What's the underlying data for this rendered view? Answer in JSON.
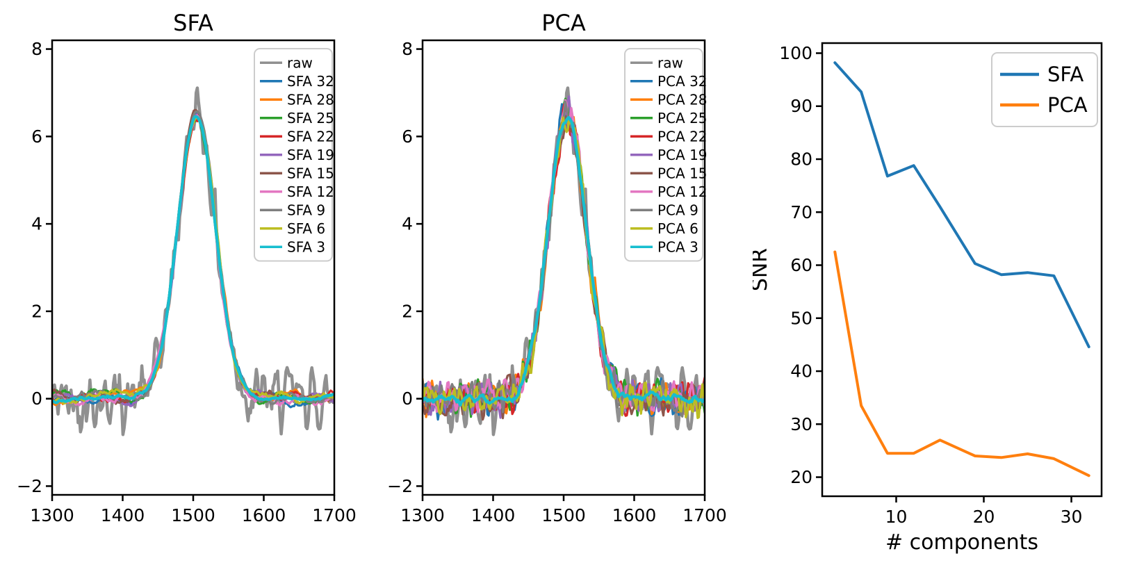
{
  "figure": {
    "background": "#ffffff",
    "text_color": "#000000",
    "spine_color": "#000000",
    "legend_border_color": "#cccccc",
    "legend_background": "#ffffff"
  },
  "chart_data": [
    {
      "type": "line",
      "title": "SFA",
      "xlabel": "",
      "ylabel": "",
      "xlim": [
        1300,
        1700
      ],
      "ylim": [
        -2.2,
        8.2
      ],
      "xticks": [
        1300,
        1400,
        1500,
        1600,
        1700
      ],
      "yticks": [
        -2,
        0,
        2,
        4,
        6,
        8
      ],
      "grid": false,
      "legend_position": "upper right",
      "signal_model": {
        "kind": "gaussian_peak_plus_noise",
        "center": 1505,
        "sigma": 27,
        "amplitude": 6.5,
        "baseline": 0,
        "raw_peak_observed": 7.7,
        "smooth_peak_observed": 6.5,
        "n_points": 240
      },
      "series": [
        {
          "label": "raw",
          "color": "#909090",
          "noise_scale": 1.0,
          "smooth": 3,
          "seed": 42,
          "width": 4.5
        },
        {
          "label": "SFA 32",
          "color": "#1f77b4",
          "noise_scale": 0.5,
          "smooth": 15,
          "seed": 201,
          "width": 3.2
        },
        {
          "label": "SFA 28",
          "color": "#ff7f0e",
          "noise_scale": 0.5,
          "smooth": 15,
          "seed": 202,
          "width": 3.2
        },
        {
          "label": "SFA 25",
          "color": "#2ca02c",
          "noise_scale": 0.5,
          "smooth": 15,
          "seed": 203,
          "width": 3.2
        },
        {
          "label": "SFA 22",
          "color": "#d62728",
          "noise_scale": 0.5,
          "smooth": 15,
          "seed": 204,
          "width": 3.2
        },
        {
          "label": "SFA 19",
          "color": "#9467bd",
          "noise_scale": 0.5,
          "smooth": 15,
          "seed": 205,
          "width": 3.2
        },
        {
          "label": "SFA 15",
          "color": "#8c564b",
          "noise_scale": 0.5,
          "smooth": 15,
          "seed": 206,
          "width": 3.2
        },
        {
          "label": "SFA 12",
          "color": "#e377c2",
          "noise_scale": 0.5,
          "smooth": 15,
          "seed": 207,
          "width": 3.2
        },
        {
          "label": "SFA 9",
          "color": "#7f7f7f",
          "noise_scale": 0.5,
          "smooth": 15,
          "seed": 208,
          "width": 3.2
        },
        {
          "label": "SFA 6",
          "color": "#bcbd22",
          "noise_scale": 0.5,
          "smooth": 15,
          "seed": 209,
          "width": 3.2
        },
        {
          "label": "SFA 3",
          "color": "#17becf",
          "noise_scale": 0.4,
          "smooth": 21,
          "seed": 210,
          "width": 4.2
        }
      ]
    },
    {
      "type": "line",
      "title": "PCA",
      "xlabel": "",
      "ylabel": "",
      "xlim": [
        1300,
        1700
      ],
      "ylim": [
        -2.2,
        8.2
      ],
      "xticks": [
        1300,
        1400,
        1500,
        1600,
        1700
      ],
      "yticks": [
        -2,
        0,
        2,
        4,
        6,
        8
      ],
      "grid": false,
      "legend_position": "upper right",
      "signal_model": {
        "kind": "gaussian_peak_plus_noise",
        "center": 1505,
        "sigma": 27,
        "amplitude": 6.5,
        "baseline": 0,
        "raw_peak_observed": 7.7,
        "smooth_peak_observed": 6.5,
        "n_points": 240
      },
      "series": [
        {
          "label": "raw",
          "color": "#909090",
          "noise_scale": 1.0,
          "smooth": 3,
          "seed": 42,
          "width": 4.5
        },
        {
          "label": "PCA 32",
          "color": "#1f77b4",
          "noise_scale": 0.55,
          "smooth": 3,
          "seed": 301,
          "width": 3.2
        },
        {
          "label": "PCA 28",
          "color": "#ff7f0e",
          "noise_scale": 0.55,
          "smooth": 3,
          "seed": 302,
          "width": 3.2
        },
        {
          "label": "PCA 25",
          "color": "#2ca02c",
          "noise_scale": 0.55,
          "smooth": 3,
          "seed": 303,
          "width": 3.2
        },
        {
          "label": "PCA 22",
          "color": "#d62728",
          "noise_scale": 0.55,
          "smooth": 3,
          "seed": 304,
          "width": 3.2
        },
        {
          "label": "PCA 19",
          "color": "#9467bd",
          "noise_scale": 0.55,
          "smooth": 3,
          "seed": 305,
          "width": 3.2
        },
        {
          "label": "PCA 15",
          "color": "#8c564b",
          "noise_scale": 0.55,
          "smooth": 3,
          "seed": 306,
          "width": 3.2
        },
        {
          "label": "PCA 12",
          "color": "#e377c2",
          "noise_scale": 0.55,
          "smooth": 3,
          "seed": 307,
          "width": 3.2
        },
        {
          "label": "PCA 9",
          "color": "#7f7f7f",
          "noise_scale": 0.55,
          "smooth": 3,
          "seed": 308,
          "width": 3.2
        },
        {
          "label": "PCA 6",
          "color": "#bcbd22",
          "noise_scale": 0.55,
          "smooth": 3,
          "seed": 309,
          "width": 3.2
        },
        {
          "label": "PCA 3",
          "color": "#17becf",
          "noise_scale": 0.3,
          "smooth": 7,
          "seed": 310,
          "width": 4.2
        }
      ]
    },
    {
      "type": "line",
      "title": "",
      "xlabel": "# components",
      "ylabel": "SNR",
      "x": [
        3,
        6,
        9,
        12,
        15,
        19,
        22,
        25,
        28,
        32
      ],
      "xlim": [
        1.55,
        33.45
      ],
      "ylim": [
        16.4,
        101.9
      ],
      "xticks": [
        10,
        20,
        30
      ],
      "yticks": [
        20,
        30,
        40,
        50,
        60,
        70,
        80,
        90,
        100
      ],
      "grid": false,
      "legend_position": "upper right",
      "series": [
        {
          "label": "SFA",
          "color": "#1f77b4",
          "width": 4,
          "values": [
            98.2,
            92.7,
            76.8,
            78.8,
            71.0,
            60.3,
            58.2,
            58.6,
            58.0,
            44.6
          ]
        },
        {
          "label": "PCA",
          "color": "#ff7f0e",
          "width": 4,
          "values": [
            62.5,
            33.5,
            24.5,
            24.5,
            27.0,
            24.0,
            23.7,
            24.4,
            23.5,
            20.3
          ]
        }
      ]
    }
  ]
}
